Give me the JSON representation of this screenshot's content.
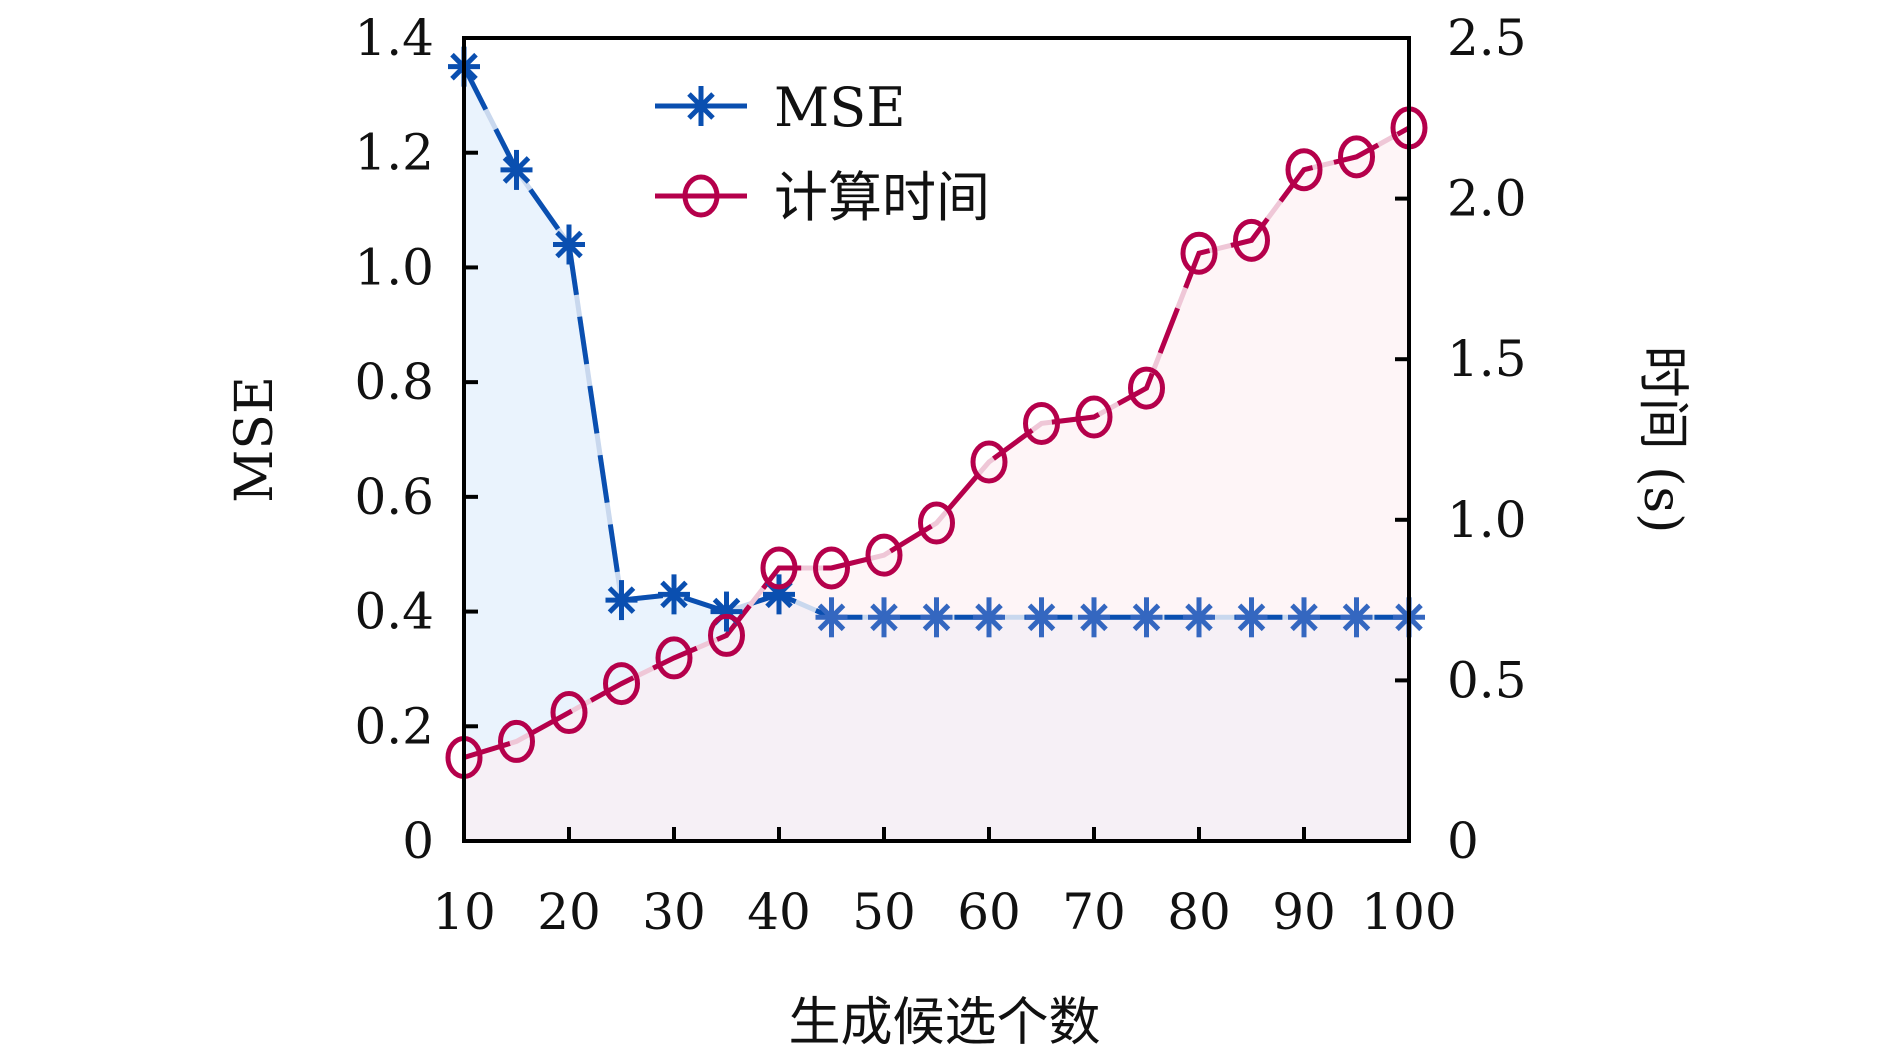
{
  "chart_data": {
    "type": "line",
    "title": "",
    "xlabel": "生成候选个数",
    "ylabel": "MSE",
    "y2label": "时间 (s)",
    "x": [
      10,
      15,
      20,
      25,
      30,
      35,
      40,
      45,
      50,
      55,
      60,
      65,
      70,
      75,
      80,
      85,
      90,
      95,
      100
    ],
    "xlim": [
      10,
      100
    ],
    "ylim": [
      0,
      1.4
    ],
    "y2lim": [
      0,
      2.5
    ],
    "xticks": [
      "10",
      "20",
      "30",
      "40",
      "50",
      "60",
      "70",
      "80",
      "90",
      "100"
    ],
    "xtick_values": [
      10,
      20,
      30,
      40,
      50,
      60,
      70,
      80,
      90,
      100
    ],
    "yticks": [
      "0",
      "0.2",
      "0.4",
      "0.6",
      "0.8",
      "1.0",
      "1.2",
      "1.4"
    ],
    "ytick_values": [
      0,
      0.2,
      0.4,
      0.6,
      0.8,
      1.0,
      1.2,
      1.4
    ],
    "y2ticks": [
      "0",
      "0.5",
      "1.0",
      "1.5",
      "2.0",
      "2.5"
    ],
    "y2tick_values": [
      0,
      0.5,
      1.0,
      1.5,
      2.0,
      2.5
    ],
    "grid": false,
    "legend_position": "top-center",
    "series": [
      {
        "name": "MSE",
        "axis": "left",
        "marker": "asterisk",
        "color": "#0a4fb0",
        "fill_color": "#eaf3fd",
        "values": [
          1.35,
          1.17,
          1.04,
          0.42,
          0.43,
          0.4,
          0.43,
          0.39,
          0.39,
          0.39,
          0.39,
          0.39,
          0.39,
          0.39,
          0.39,
          0.39,
          0.39,
          0.39,
          0.39
        ]
      },
      {
        "name": "计算时间",
        "axis": "right",
        "marker": "circle",
        "color": "#b5004b",
        "fill_color": "#fdeef2",
        "values": [
          0.26,
          0.31,
          0.4,
          0.49,
          0.57,
          0.64,
          0.85,
          0.85,
          0.89,
          0.99,
          1.18,
          1.3,
          1.32,
          1.41,
          1.83,
          1.87,
          2.09,
          2.13,
          2.22
        ]
      }
    ]
  }
}
